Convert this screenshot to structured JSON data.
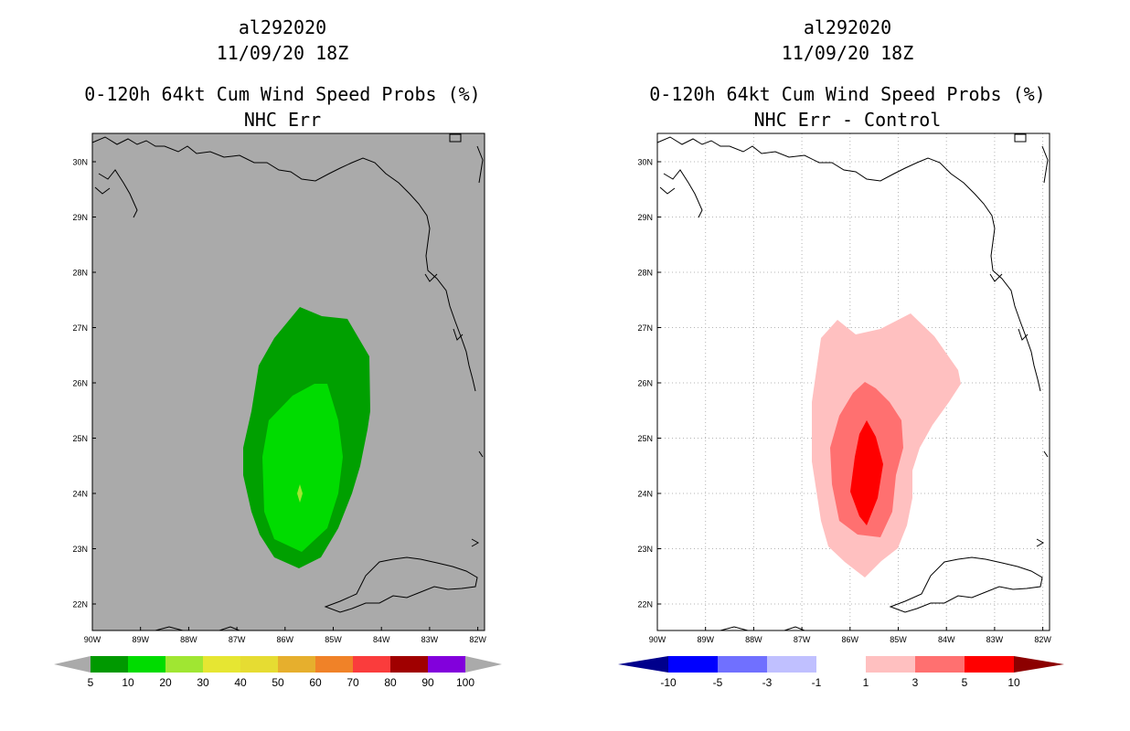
{
  "colors": {
    "land_gray": "#aaaaaa",
    "green_dark": "#00a000",
    "green_light": "#00dc00",
    "green_core": "#a0e632",
    "pink": "#ffc0c0",
    "salmon": "#ff7070",
    "red": "#ff0000"
  },
  "lat_labels": [
    "30N",
    "29N",
    "28N",
    "27N",
    "26N",
    "25N",
    "24N",
    "23N",
    "22N"
  ],
  "lon_labels": [
    "90W",
    "89W",
    "88W",
    "87W",
    "86W",
    "85W",
    "84W",
    "83W",
    "82W"
  ],
  "left": {
    "storm_id": "al292020",
    "datetime": "11/09/20 18Z",
    "product": "0-120h 64kt Cum Wind Speed Probs (%)",
    "subtitle": "NHC Err",
    "colorbar": {
      "labels": [
        "5",
        "10",
        "20",
        "30",
        "40",
        "50",
        "60",
        "70",
        "80",
        "90",
        "100"
      ],
      "colors": [
        "#009900",
        "#00dc00",
        "#a0e632",
        "#e6e632",
        "#e6dc32",
        "#e6af2d",
        "#f08228",
        "#fa3c3c",
        "#a00000",
        "#8200dc"
      ]
    }
  },
  "right": {
    "storm_id": "al292020",
    "datetime": "11/09/20 18Z",
    "product": "0-120h 64kt Cum Wind Speed Probs (%)",
    "subtitle": "NHC Err - Control",
    "colorbar": {
      "labels": [
        "-10",
        "-5",
        "-3",
        "-1",
        "1",
        "3",
        "5",
        "10"
      ],
      "colors": [
        "#0000ff",
        "#7070ff",
        "#c0c0ff",
        "#ffffff",
        "#ffc0c0",
        "#ff7070",
        "#ff0000"
      ],
      "left_tip": "#00008c",
      "right_tip": "#8c0000"
    }
  }
}
